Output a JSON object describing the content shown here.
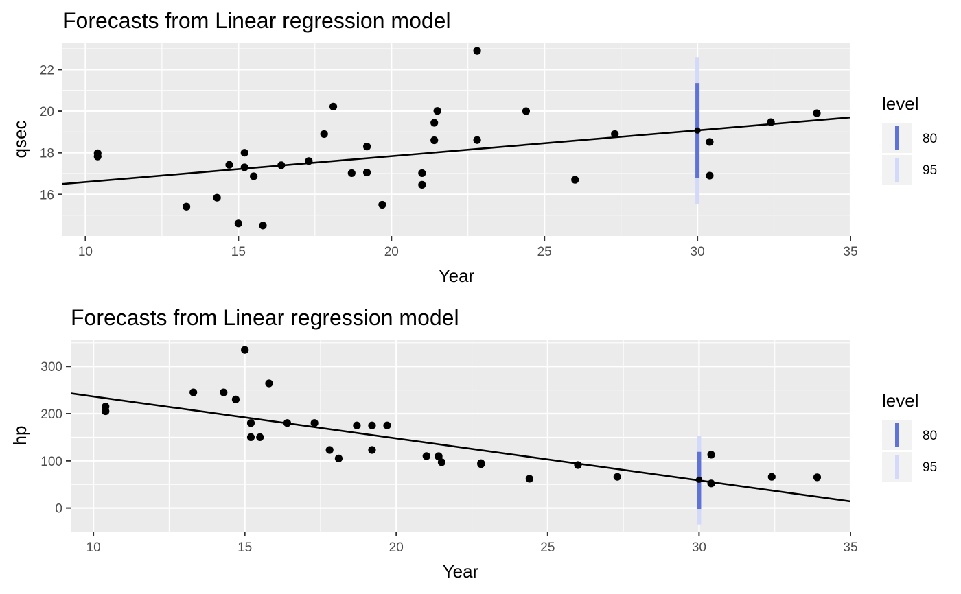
{
  "chart_data": [
    {
      "type": "scatter",
      "title": "Forecasts from Linear regression model",
      "xlabel": "Year",
      "ylabel": "qsec",
      "xlim": [
        9.25,
        35.0
      ],
      "ylim": [
        14.0,
        23.3
      ],
      "x_ticks": [
        10,
        15,
        20,
        25,
        30,
        35
      ],
      "y_ticks": [
        16,
        18,
        20,
        22
      ],
      "grid": true,
      "legend_position": "right",
      "colors": {
        "panel": "#EBEBEB",
        "grid": "#FFFFFF",
        "point": "#000000",
        "line": "#000000",
        "interval_80": "#5F72D6",
        "interval_95": "#D3D9F8"
      },
      "points": {
        "x": [
          21.0,
          21.0,
          22.8,
          21.4,
          18.7,
          18.1,
          14.3,
          24.4,
          22.8,
          19.2,
          17.8,
          16.4,
          17.3,
          15.2,
          10.4,
          10.4,
          14.7,
          32.4,
          30.4,
          33.9,
          21.5,
          15.5,
          15.2,
          13.3,
          19.2,
          27.3,
          26.0,
          30.4,
          15.8,
          19.7,
          15.0,
          21.4
        ],
        "y": [
          16.46,
          17.02,
          18.61,
          19.44,
          17.02,
          20.22,
          15.84,
          20.0,
          22.9,
          18.3,
          18.9,
          17.4,
          17.6,
          18.0,
          17.98,
          17.82,
          17.42,
          19.47,
          18.52,
          19.9,
          20.01,
          16.87,
          17.3,
          15.41,
          17.05,
          18.9,
          16.7,
          16.9,
          14.5,
          15.5,
          14.6,
          18.6
        ]
      },
      "fit_line": {
        "x": [
          9.25,
          35.0
        ],
        "y": [
          16.5,
          19.7
        ]
      },
      "forecast": {
        "x": 30.0,
        "point": 19.07,
        "lo80": 16.8,
        "hi80": 21.35,
        "lo95": 15.55,
        "hi95": 22.6
      },
      "legend": {
        "title": "level",
        "entries": [
          "80",
          "95"
        ]
      }
    },
    {
      "type": "scatter",
      "title": "Forecasts from Linear regression model",
      "xlabel": "Year",
      "ylabel": "hp",
      "xlim": [
        9.25,
        35.0
      ],
      "ylim": [
        -50,
        357
      ],
      "x_ticks": [
        10,
        15,
        20,
        25,
        30,
        35
      ],
      "y_ticks": [
        0,
        100,
        200,
        300
      ],
      "grid": true,
      "legend_position": "right",
      "colors": {
        "panel": "#EBEBEB",
        "grid": "#FFFFFF",
        "point": "#000000",
        "line": "#000000",
        "interval_80": "#5F72D6",
        "interval_95": "#D3D9F8"
      },
      "points": {
        "x": [
          21.0,
          21.0,
          22.8,
          21.4,
          18.7,
          18.1,
          14.3,
          24.4,
          22.8,
          19.2,
          17.8,
          16.4,
          17.3,
          15.2,
          10.4,
          10.4,
          14.7,
          32.4,
          30.4,
          33.9,
          21.5,
          15.5,
          15.2,
          13.3,
          19.2,
          27.3,
          26.0,
          30.4,
          15.8,
          19.7,
          15.0,
          21.4
        ],
        "y": [
          110,
          110,
          93,
          110,
          175,
          105,
          245,
          62,
          95,
          123,
          123,
          180,
          180,
          180,
          205,
          215,
          230,
          66,
          52,
          65,
          97,
          150,
          150,
          245,
          175,
          66,
          91,
          113,
          264,
          175,
          335,
          109
        ]
      },
      "fit_line": {
        "x": [
          9.25,
          35.0
        ],
        "y": [
          243,
          14
        ]
      },
      "forecast": {
        "x": 30.0,
        "point": 60,
        "lo80": -2,
        "hi80": 119,
        "lo95": -35,
        "hi95": 153
      },
      "legend": {
        "title": "level",
        "entries": [
          "80",
          "95"
        ]
      }
    }
  ]
}
